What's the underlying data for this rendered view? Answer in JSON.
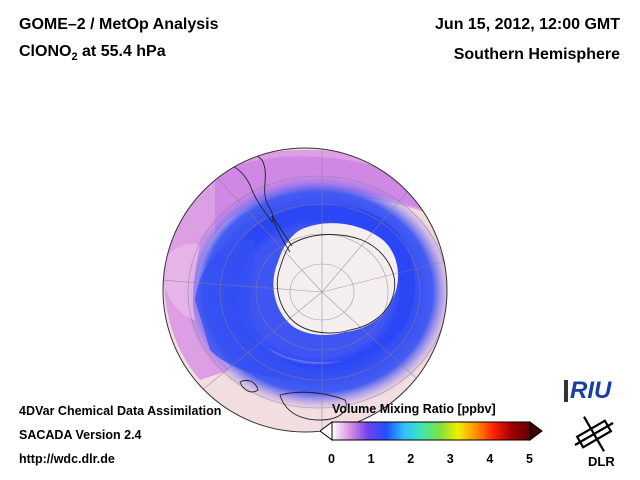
{
  "header": {
    "title_line1": "GOME–2 / MetOp Analysis",
    "species_base": "ClONO",
    "species_sub": "2",
    "species_suffix": " at 55.4 hPa",
    "datetime": "Jun 15, 2012, 12:00 GMT",
    "hemisphere": "Southern Hemisphere"
  },
  "footer": {
    "line1": "4DVar Chemical Data Assimilation",
    "line2": "SACADA Version 2.4",
    "line3": "http://wdc.dlr.de"
  },
  "colorbar": {
    "title": "Volume Mixing Ratio [ppbv]",
    "ticks": [
      "0",
      "1",
      "2",
      "3",
      "4",
      "5"
    ],
    "min": 0,
    "max": 5,
    "colors": [
      "#ffffff",
      "#d890e0",
      "#7040f0",
      "#2050ff",
      "#30c0ff",
      "#40e8b0",
      "#80e040",
      "#f0f000",
      "#ff9000",
      "#ff2000",
      "#a00000",
      "#600000"
    ]
  },
  "logos": {
    "riu": "RIU",
    "dlr": "DLR"
  },
  "map": {
    "projection": "orthographic-south-polar",
    "ocean_color": "#f2dde0",
    "low_band_color": "#2a46f5",
    "mid_band_color": "#d58ae6",
    "pole_color": "#f4eeee"
  }
}
